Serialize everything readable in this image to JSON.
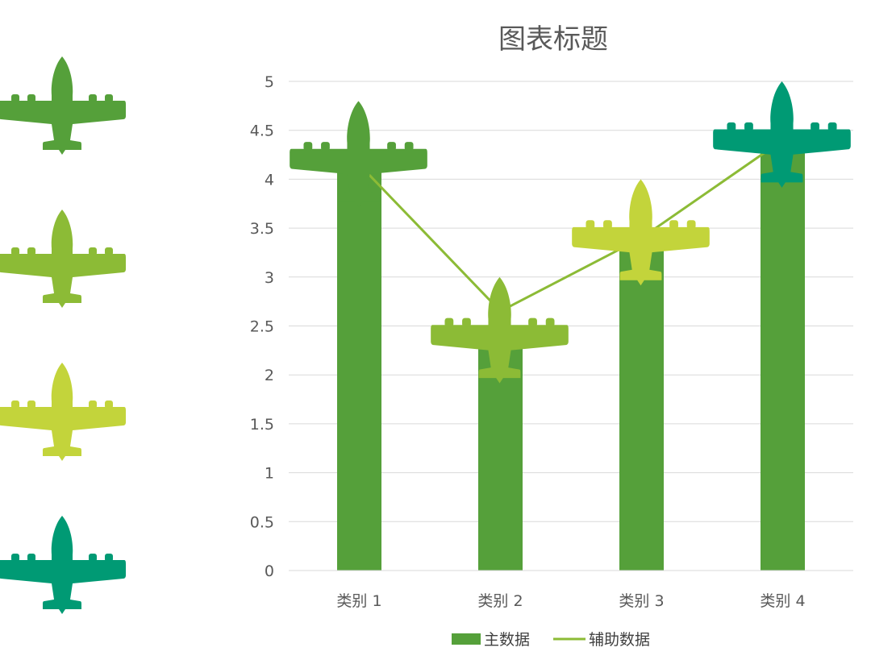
{
  "chart_data": {
    "type": "bar",
    "title": "图表标题",
    "categories": [
      "类别 1",
      "类别 2",
      "类别 3",
      "类别 4"
    ],
    "series": [
      {
        "name": "主数据",
        "type": "bar",
        "values": [
          4.3,
          2.5,
          3.5,
          4.5
        ],
        "color": "#55a03a"
      },
      {
        "name": "辅助数据",
        "type": "line",
        "values": [
          4.15,
          2.65,
          3.4,
          4.4
        ],
        "color": "#8cbb36"
      }
    ],
    "marker_colors": [
      "#55a03a",
      "#8cbb36",
      "#c3d43b",
      "#009a74"
    ],
    "ylim": [
      0,
      5
    ],
    "yticks": [
      "0",
      "0.5",
      "1",
      "1.5",
      "2",
      "2.5",
      "3",
      "3.5",
      "4",
      "4.5",
      "5"
    ],
    "xlabel": "",
    "ylabel": "",
    "grid": true,
    "legend_position": "bottom"
  },
  "side_icons": [
    {
      "icon": "airplane-icon",
      "color": "#55a03a"
    },
    {
      "icon": "airplane-icon",
      "color": "#8cbb36"
    },
    {
      "icon": "airplane-icon",
      "color": "#c3d43b"
    },
    {
      "icon": "airplane-icon",
      "color": "#009a74"
    }
  ]
}
